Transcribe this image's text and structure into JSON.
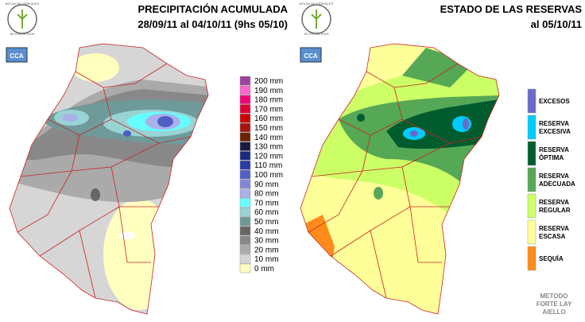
{
  "left": {
    "logo": {
      "lines": [
        "BOLSA DE CEREALES",
        "DE ENTRE RIOS"
      ],
      "badge": "CCA"
    },
    "title": "PRECIPITACIÓN ACUMULADA",
    "subtitle": "28/09/11 al 04/10/11 (9hs 05/10)",
    "legend": [
      {
        "label": "200 mm",
        "color": "#a040a0"
      },
      {
        "label": "190 mm",
        "color": "#ff66cc"
      },
      {
        "label": "180 mm",
        "color": "#ee0077"
      },
      {
        "label": "170 mm",
        "color": "#dd0033"
      },
      {
        "label": "160 mm",
        "color": "#cc0000"
      },
      {
        "label": "150 mm",
        "color": "#aa1111"
      },
      {
        "label": "140 mm",
        "color": "#6b2200"
      },
      {
        "label": "130 mm",
        "color": "#1a1a40"
      },
      {
        "label": "120 mm",
        "color": "#1a2a80"
      },
      {
        "label": "110 mm",
        "color": "#2a3aa8"
      },
      {
        "label": "100 mm",
        "color": "#4f5ec4"
      },
      {
        "label": "90 mm",
        "color": "#7f86da"
      },
      {
        "label": "80 mm",
        "color": "#aab0ea"
      },
      {
        "label": "70 mm",
        "color": "#66ffff"
      },
      {
        "label": "60 mm",
        "color": "#99d4d4"
      },
      {
        "label": "50 mm",
        "color": "#6f9a9a"
      },
      {
        "label": "40 mm",
        "color": "#666666"
      },
      {
        "label": "30 mm",
        "color": "#888888"
      },
      {
        "label": "20 mm",
        "color": "#aaaaaa"
      },
      {
        "label": "10 mm",
        "color": "#d6d6d6"
      },
      {
        "label": "0 mm",
        "color": "#ffffc0"
      }
    ]
  },
  "right": {
    "logo": {
      "lines": [
        "BOLSA DE CEREALES",
        "DE ENTRE RIOS"
      ],
      "badge": "CCA"
    },
    "title": "ESTADO DE LAS RESERVAS",
    "subtitle": "al 05/10/11",
    "legend": [
      {
        "lines": [
          "EXCESOS"
        ],
        "color": "#6a6acc"
      },
      {
        "lines": [
          "RESERVA",
          "EXCESIVA"
        ],
        "color": "#00ccff"
      },
      {
        "lines": [
          "RESERVA",
          "ÓPTIMA"
        ],
        "color": "#005c2e"
      },
      {
        "lines": [
          "RESERVA",
          "ADECUADA"
        ],
        "color": "#55a855"
      },
      {
        "lines": [
          "RESERVA",
          "REGULAR"
        ],
        "color": "#ccff66"
      },
      {
        "lines": [
          "RESERVA",
          "ESCASA"
        ],
        "color": "#ffff99"
      },
      {
        "lines": [
          "SEQUÍA"
        ],
        "color": "#ff8c1a"
      }
    ],
    "method": [
      "METODO",
      "FORTE LAY",
      "AIELLO"
    ]
  }
}
